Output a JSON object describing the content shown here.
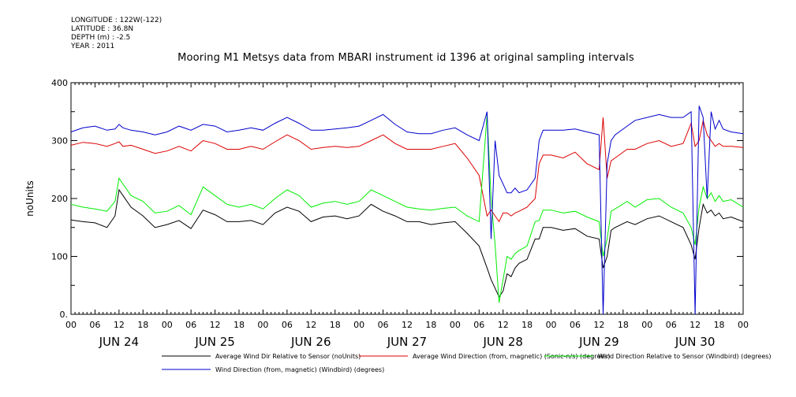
{
  "meta": {
    "longitude": "LONGITUDE : 122W(-122)",
    "latitude": "LATITUDE : 36.8N",
    "depth": "DEPTH (m) : -2.5",
    "year": "YEAR : 2011"
  },
  "chart_data": {
    "type": "line",
    "title": "Mooring M1 Metsys data from MBARI instrument id 1396 at original sampling intervals",
    "ylabel": "noUnits",
    "xlabel": "",
    "ylim": [
      0,
      400
    ],
    "yticks": [
      0,
      100,
      200,
      300,
      400
    ],
    "ytick_labels": [
      "0.",
      "100",
      "200",
      "300",
      "400"
    ],
    "xlim_hours": [
      0,
      168
    ],
    "x_hour_labels": [
      "00",
      "06",
      "12",
      "18",
      "00",
      "06",
      "12",
      "18",
      "00",
      "06",
      "12",
      "18",
      "00",
      "06",
      "12",
      "18",
      "00",
      "06",
      "12",
      "18",
      "00",
      "06",
      "12",
      "18",
      "00",
      "06",
      "12",
      "18",
      "00"
    ],
    "date_labels": [
      "JUN 24",
      "JUN 25",
      "JUN 26",
      "JUN 27",
      "JUN 28",
      "JUN 29",
      "JUN 30"
    ],
    "grid": false,
    "legend_placement": "bottom",
    "series": [
      {
        "name": "Average Wind Dir Relative to Sensor (noUnits)",
        "color": "#000000",
        "x": [
          0,
          3,
          6,
          9,
          11,
          12,
          13,
          15,
          18,
          21,
          24,
          27,
          30,
          33,
          36,
          39,
          42,
          45,
          48,
          51,
          54,
          57,
          60,
          63,
          66,
          69,
          72,
          75,
          78,
          81,
          84,
          87,
          90,
          93,
          96,
          99,
          102,
          104,
          105,
          106,
          107,
          108,
          109,
          110,
          111,
          112,
          114,
          116,
          117,
          118,
          120,
          123,
          126,
          129,
          132,
          133,
          134,
          135,
          136,
          139,
          141,
          144,
          147,
          150,
          153,
          155,
          156,
          157,
          158,
          159,
          160,
          161,
          162,
          163,
          165,
          168
        ],
        "y": [
          163,
          160,
          158,
          150,
          170,
          215,
          205,
          185,
          170,
          150,
          155,
          162,
          148,
          180,
          172,
          160,
          160,
          162,
          155,
          175,
          185,
          178,
          160,
          168,
          170,
          165,
          170,
          190,
          178,
          170,
          160,
          160,
          155,
          158,
          160,
          140,
          118,
          80,
          60,
          45,
          30,
          40,
          70,
          65,
          80,
          88,
          95,
          130,
          130,
          150,
          150,
          145,
          148,
          135,
          130,
          80,
          100,
          145,
          150,
          160,
          155,
          165,
          170,
          160,
          150,
          120,
          95,
          150,
          190,
          175,
          180,
          170,
          175,
          165,
          168,
          160
        ]
      },
      {
        "name": "Average Wind Direction (from, magnetic) (Sonic-n/s) (degrees)",
        "color": "#dd0000",
        "x": [
          0,
          3,
          6,
          9,
          11,
          12,
          13,
          15,
          18,
          21,
          24,
          27,
          30,
          33,
          36,
          39,
          42,
          45,
          48,
          51,
          54,
          57,
          60,
          63,
          66,
          69,
          72,
          75,
          78,
          81,
          84,
          87,
          90,
          93,
          96,
          99,
          102,
          104,
          105,
          106,
          107,
          108,
          109,
          110,
          111,
          112,
          114,
          116,
          117,
          118,
          120,
          123,
          126,
          129,
          132,
          133,
          134,
          135,
          136,
          139,
          141,
          144,
          147,
          150,
          153,
          155,
          156,
          157,
          158,
          159,
          160,
          161,
          162,
          163,
          165,
          168
        ],
        "y": [
          292,
          297,
          295,
          290,
          295,
          298,
          290,
          292,
          285,
          278,
          282,
          290,
          282,
          300,
          295,
          285,
          285,
          290,
          285,
          298,
          310,
          300,
          285,
          288,
          290,
          288,
          290,
          300,
          310,
          295,
          285,
          285,
          285,
          290,
          295,
          270,
          240,
          170,
          180,
          170,
          160,
          175,
          175,
          170,
          175,
          178,
          185,
          200,
          260,
          275,
          275,
          270,
          280,
          260,
          250,
          340,
          235,
          265,
          270,
          285,
          285,
          295,
          300,
          290,
          295,
          330,
          290,
          300,
          335,
          310,
          300,
          290,
          295,
          290,
          290,
          288
        ]
      },
      {
        "name": "Wind Direction Relative to Sensor (Windbird) (degrees)",
        "color": "#00ee00",
        "x": [
          0,
          3,
          6,
          9,
          11,
          12,
          13,
          15,
          18,
          21,
          24,
          27,
          30,
          33,
          36,
          39,
          42,
          45,
          48,
          51,
          54,
          57,
          60,
          63,
          66,
          69,
          72,
          75,
          78,
          81,
          84,
          87,
          90,
          93,
          96,
          99,
          102,
          104,
          105,
          106,
          107,
          108,
          109,
          110,
          111,
          112,
          114,
          116,
          117,
          118,
          120,
          123,
          126,
          129,
          132,
          133,
          134,
          135,
          136,
          139,
          141,
          144,
          147,
          150,
          153,
          155,
          156,
          157,
          158,
          159,
          160,
          161,
          162,
          163,
          165,
          168
        ],
        "y": [
          190,
          185,
          182,
          178,
          195,
          235,
          225,
          205,
          195,
          175,
          178,
          188,
          172,
          220,
          205,
          190,
          185,
          190,
          182,
          200,
          215,
          205,
          185,
          192,
          195,
          190,
          195,
          215,
          205,
          195,
          185,
          182,
          180,
          183,
          185,
          170,
          160,
          345,
          200,
          120,
          20,
          60,
          100,
          95,
          105,
          110,
          118,
          160,
          162,
          180,
          180,
          175,
          178,
          168,
          160,
          100,
          130,
          178,
          182,
          195,
          185,
          198,
          200,
          185,
          175,
          150,
          120,
          185,
          220,
          200,
          210,
          195,
          205,
          195,
          198,
          185
        ]
      },
      {
        "name": "Wind Direction (from, magnetic) (Windbird) (degrees)",
        "color": "#0000cc",
        "x": [
          0,
          3,
          6,
          9,
          11,
          12,
          13,
          15,
          18,
          21,
          24,
          27,
          30,
          33,
          36,
          39,
          42,
          45,
          48,
          51,
          54,
          57,
          60,
          63,
          66,
          69,
          72,
          75,
          78,
          81,
          84,
          87,
          90,
          93,
          96,
          99,
          102,
          104,
          105,
          106,
          107,
          108,
          109,
          110,
          111,
          112,
          114,
          116,
          117,
          118,
          120,
          123,
          126,
          129,
          132,
          133,
          134,
          135,
          136,
          139,
          141,
          144,
          147,
          150,
          153,
          155,
          156,
          157,
          158,
          159,
          160,
          161,
          162,
          163,
          165,
          168
        ],
        "y": [
          315,
          322,
          325,
          318,
          320,
          328,
          322,
          318,
          315,
          310,
          315,
          325,
          318,
          328,
          325,
          315,
          318,
          322,
          318,
          330,
          340,
          330,
          318,
          318,
          320,
          322,
          325,
          335,
          345,
          328,
          315,
          312,
          312,
          318,
          322,
          310,
          300,
          350,
          130,
          300,
          240,
          225,
          210,
          210,
          218,
          210,
          215,
          235,
          300,
          318,
          318,
          318,
          320,
          315,
          310,
          0,
          260,
          300,
          310,
          325,
          335,
          340,
          345,
          340,
          340,
          350,
          0,
          360,
          340,
          200,
          350,
          320,
          335,
          320,
          315,
          312
        ]
      }
    ]
  }
}
